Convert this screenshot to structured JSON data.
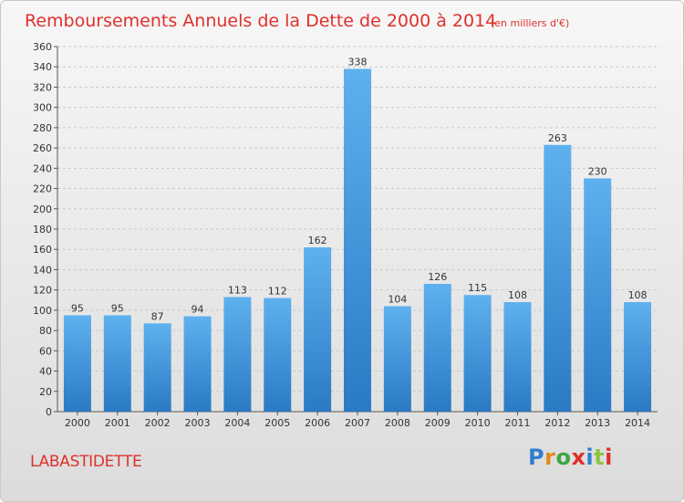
{
  "chart_data": {
    "type": "bar",
    "title": "Remboursements Annuels de la Dette de 2000 à 2014",
    "subtitle": "(en milliers d'€)",
    "categories": [
      "2000",
      "2001",
      "2002",
      "2003",
      "2004",
      "2005",
      "2006",
      "2007",
      "2008",
      "2009",
      "2010",
      "2011",
      "2012",
      "2013",
      "2014"
    ],
    "values": [
      95,
      95,
      87,
      94,
      113,
      112,
      162,
      338,
      104,
      126,
      115,
      108,
      263,
      230,
      108
    ],
    "ylim": [
      0,
      360
    ],
    "yticks": [
      0,
      20,
      40,
      60,
      80,
      100,
      120,
      140,
      160,
      180,
      200,
      220,
      240,
      260,
      280,
      300,
      320,
      340,
      360
    ],
    "grid": true,
    "xlabel": "",
    "ylabel": "",
    "bar_color": "#4a9fe0"
  },
  "place_name": "LABASTIDETTE",
  "logo": {
    "letters": [
      "P",
      "r",
      "o",
      "x",
      "i",
      "t",
      "i"
    ],
    "colors": [
      "#2f7fd1",
      "#e08a1e",
      "#3aa843",
      "#e0302a",
      "#2f7fd1",
      "#8bc43f",
      "#e0302a"
    ]
  }
}
